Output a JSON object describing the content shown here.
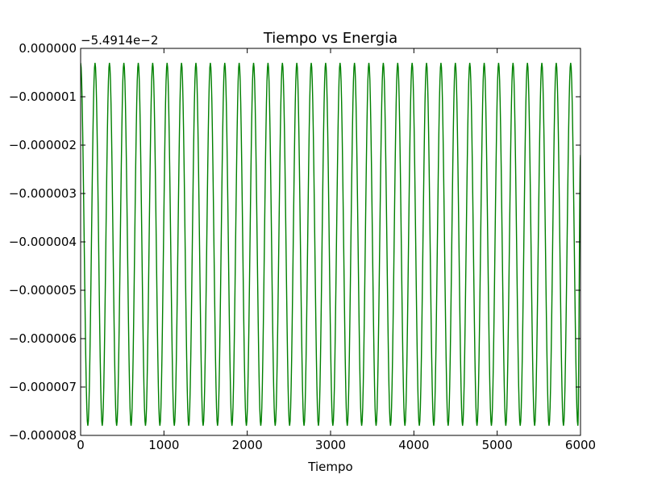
{
  "chart_data": {
    "type": "line",
    "title": "Tiempo vs Energia",
    "xlabel": "Tiempo",
    "ylabel": "",
    "offset_text": "−5.4914e−2",
    "xlim": [
      0,
      6000
    ],
    "ylim": [
      -8e-06,
      0.0
    ],
    "x_ticks": [
      0,
      1000,
      2000,
      3000,
      4000,
      5000,
      6000
    ],
    "x_tick_labels": [
      "0",
      "1000",
      "2000",
      "3000",
      "4000",
      "5000",
      "6000"
    ],
    "y_ticks": [
      0.0,
      -1e-06,
      -2e-06,
      -3e-06,
      -4e-06,
      -5e-06,
      -6e-06,
      -7e-06,
      -8e-06
    ],
    "y_tick_labels": [
      "0.000000",
      "−0.000001",
      "−0.000002",
      "−0.000003",
      "−0.000004",
      "−0.000005",
      "−0.000006",
      "−0.000007",
      "−0.000008"
    ],
    "grid": false,
    "legend": "none",
    "series": [
      {
        "color": "#008000",
        "description": "oscillating energy (offset-relative): starts near 0, oscillates between about -0.0000003 and -0.0000078 with period about 173, 35 cycles, ends mid-descent",
        "x": [
          0,
          86.5,
          173,
          259.5,
          346,
          432.5,
          519,
          605.5,
          692,
          778.5,
          865,
          951.5,
          1038,
          1124.5,
          1211,
          1297.5,
          1384,
          1470.5,
          1557,
          1643.5,
          1730,
          1816.5,
          1903,
          1989.5,
          2076,
          2162.5,
          2249,
          2335.5,
          2422,
          2508.5,
          2595,
          2681.5,
          2768,
          2854.5,
          2941,
          3027.5,
          3114,
          3200.5,
          3287,
          3373.5,
          3460,
          3546.5,
          3633,
          3719.5,
          3806,
          3892.5,
          3979,
          4065.5,
          4152,
          4238.5,
          4325,
          4411.5,
          4498,
          4584.5,
          4671,
          4757.5,
          4844,
          4930.5,
          5017,
          5103.5,
          5190,
          5276.5,
          5363,
          5449.5,
          5536,
          5622.5,
          5709,
          5795.5,
          5882,
          5968.5,
          6000
        ],
        "y": [
          -3e-07,
          -7.8e-06,
          -3e-07,
          -7.8e-06,
          -3e-07,
          -7.8e-06,
          -3e-07,
          -7.8e-06,
          -3e-07,
          -7.8e-06,
          -3e-07,
          -7.8e-06,
          -3e-07,
          -7.8e-06,
          -3e-07,
          -7.8e-06,
          -3e-07,
          -7.8e-06,
          -3e-07,
          -7.8e-06,
          -3e-07,
          -7.8e-06,
          -3e-07,
          -7.8e-06,
          -3e-07,
          -7.8e-06,
          -3e-07,
          -7.8e-06,
          -3e-07,
          -7.8e-06,
          -3e-07,
          -7.8e-06,
          -3e-07,
          -7.8e-06,
          -3e-07,
          -7.8e-06,
          -3e-07,
          -7.8e-06,
          -3e-07,
          -7.8e-06,
          -3e-07,
          -7.8e-06,
          -3e-07,
          -7.8e-06,
          -3e-07,
          -7.8e-06,
          -3e-07,
          -7.8e-06,
          -3e-07,
          -7.8e-06,
          -3e-07,
          -7.8e-06,
          -3e-07,
          -7.8e-06,
          -3e-07,
          -7.8e-06,
          -3e-07,
          -7.8e-06,
          -3e-07,
          -7.8e-06,
          -3e-07,
          -7.8e-06,
          -3e-07,
          -7.8e-06,
          -3e-07,
          -7.8e-06,
          -3e-07,
          -7.8e-06,
          -3e-07,
          -7.8e-06,
          -2.2e-06
        ]
      }
    ]
  }
}
